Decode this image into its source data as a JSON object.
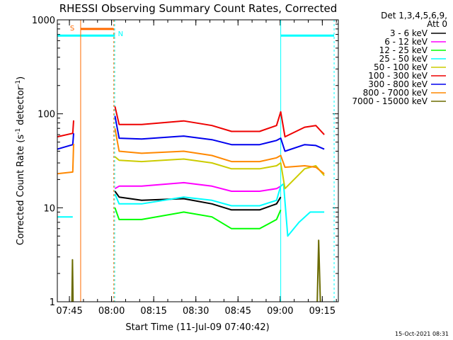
{
  "chart_data": {
    "type": "line",
    "title": "RHESSI Observing Summary Count Rates, Corrected",
    "xlabel": "Start Time (11-Jul-09 07:40:42)",
    "ylabel_main": "Corrected Count Rate (s",
    "ylabel_sup1": "-1",
    "ylabel_mid": " detector",
    "ylabel_sup2": "-1",
    "ylabel_end": ")",
    "yscale": "log",
    "ylim": [
      1,
      1000
    ],
    "xlim_minutes": [
      0,
      100
    ],
    "x_tick_labels": [
      "07:45",
      "08:00",
      "08:15",
      "08:30",
      "08:45",
      "09:00",
      "09:15"
    ],
    "x_tick_minutes": [
      4.3,
      19.3,
      34.3,
      49.3,
      64.3,
      79.3,
      94.3
    ],
    "y_tick_labels": [
      "1",
      "10",
      "100",
      "1000"
    ],
    "y_tick_values": [
      1,
      10,
      100,
      1000
    ],
    "legend_header": [
      "Det 1,3,4,5,6,9,",
      "Att 0"
    ],
    "legend_position": "right",
    "markers": [
      {
        "label": "S",
        "color": "#ff6a00"
      },
      {
        "label": "N",
        "color": "#00ffff"
      }
    ],
    "series": [
      {
        "name": "3 - 6 keV",
        "color": "#000000",
        "segments": [
          [
            [
              20.5,
              15
            ],
            [
              22,
              13
            ],
            [
              30,
              12
            ],
            [
              45,
              12.5
            ],
            [
              55,
              11
            ],
            [
              62,
              9.5
            ],
            [
              72,
              9.5
            ],
            [
              78,
              11
            ],
            [
              79.5,
              13
            ]
          ]
        ]
      },
      {
        "name": "6 - 12 keV",
        "color": "#ff00ff",
        "segments": [
          [
            [
              20.5,
              16
            ],
            [
              22,
              17
            ],
            [
              30,
              17
            ],
            [
              45,
              18.5
            ],
            [
              55,
              17
            ],
            [
              62,
              15
            ],
            [
              72,
              15
            ],
            [
              78,
              16
            ],
            [
              79.5,
              17
            ]
          ]
        ]
      },
      {
        "name": "12 - 25 keV",
        "color": "#00ff00",
        "segments": [
          [
            [
              20.5,
              10
            ],
            [
              22,
              7.5
            ],
            [
              30,
              7.5
            ],
            [
              45,
              9
            ],
            [
              55,
              8
            ],
            [
              62,
              6
            ],
            [
              72,
              6
            ],
            [
              78,
              7.5
            ],
            [
              79.5,
              9.5
            ]
          ]
        ]
      },
      {
        "name": "25 - 50 keV",
        "color": "#00ffff",
        "segments": [
          [
            [
              0,
              8
            ],
            [
              5.5,
              8
            ]
          ],
          [
            [
              20.5,
              14
            ],
            [
              22,
              11
            ],
            [
              30,
              11
            ],
            [
              45,
              13
            ],
            [
              55,
              12
            ],
            [
              62,
              10.5
            ],
            [
              72,
              10.5
            ],
            [
              78,
              12
            ],
            [
              79.5,
              17
            ],
            [
              80.5,
              18
            ],
            [
              82,
              5
            ],
            [
              86,
              7
            ],
            [
              90,
              9
            ],
            [
              95,
              9
            ]
          ]
        ]
      },
      {
        "name": "50 - 100 keV",
        "color": "#cccc00",
        "segments": [
          [
            [
              20.5,
              35
            ],
            [
              22,
              32
            ],
            [
              30,
              31
            ],
            [
              45,
              33
            ],
            [
              55,
              30
            ],
            [
              62,
              26
            ],
            [
              72,
              26
            ],
            [
              78,
              28
            ],
            [
              79.5,
              30
            ],
            [
              81,
              16
            ],
            [
              88,
              26
            ],
            [
              92,
              28
            ],
            [
              95,
              22
            ]
          ]
        ]
      },
      {
        "name": "100 - 300 keV",
        "color": "#ee0000",
        "segments": [
          [
            [
              0,
              57
            ],
            [
              5.5,
              62
            ],
            [
              5.8,
              85
            ]
          ],
          [
            [
              20.5,
              120
            ],
            [
              22,
              77
            ],
            [
              30,
              77
            ],
            [
              45,
              84
            ],
            [
              55,
              75
            ],
            [
              62,
              65
            ],
            [
              72,
              65
            ],
            [
              78,
              75
            ],
            [
              79.5,
              105
            ],
            [
              81,
              57
            ],
            [
              88,
              72
            ],
            [
              92,
              75
            ],
            [
              95,
              60
            ]
          ]
        ]
      },
      {
        "name": "300 - 800 keV",
        "color": "#0000ee",
        "segments": [
          [
            [
              0,
              42
            ],
            [
              5.5,
              47
            ],
            [
              5.8,
              62
            ]
          ],
          [
            [
              20.5,
              95
            ],
            [
              22,
              55
            ],
            [
              30,
              54
            ],
            [
              45,
              58
            ],
            [
              55,
              53
            ],
            [
              62,
              47
            ],
            [
              72,
              47
            ],
            [
              78,
              52
            ],
            [
              79.5,
              55
            ],
            [
              81,
              40
            ],
            [
              88,
              47
            ],
            [
              92,
              46
            ],
            [
              95,
              42
            ]
          ]
        ]
      },
      {
        "name": "800 - 7000 keV",
        "color": "#ff8800",
        "segments": [
          [
            [
              0,
              23
            ],
            [
              5.5,
              24
            ],
            [
              5.8,
              48
            ]
          ],
          [
            [
              20.5,
              70
            ],
            [
              22,
              40
            ],
            [
              30,
              38
            ],
            [
              45,
              40
            ],
            [
              55,
              36
            ],
            [
              62,
              31
            ],
            [
              72,
              31
            ],
            [
              78,
              34
            ],
            [
              79.5,
              36
            ],
            [
              81,
              27
            ],
            [
              88,
              28
            ],
            [
              92,
              27
            ],
            [
              95,
              23
            ]
          ]
        ]
      },
      {
        "name": "7000 - 15000 keV",
        "color": "#6b6b00",
        "segments": [
          [
            [
              5.2,
              1
            ],
            [
              5.4,
              2.8
            ],
            [
              5.6,
              1
            ]
          ],
          [
            [
              92.5,
              1
            ],
            [
              93,
              4.5
            ],
            [
              93.6,
              1
            ]
          ]
        ]
      }
    ]
  },
  "footer_timestamp": "15-Oct-2021 08:31"
}
